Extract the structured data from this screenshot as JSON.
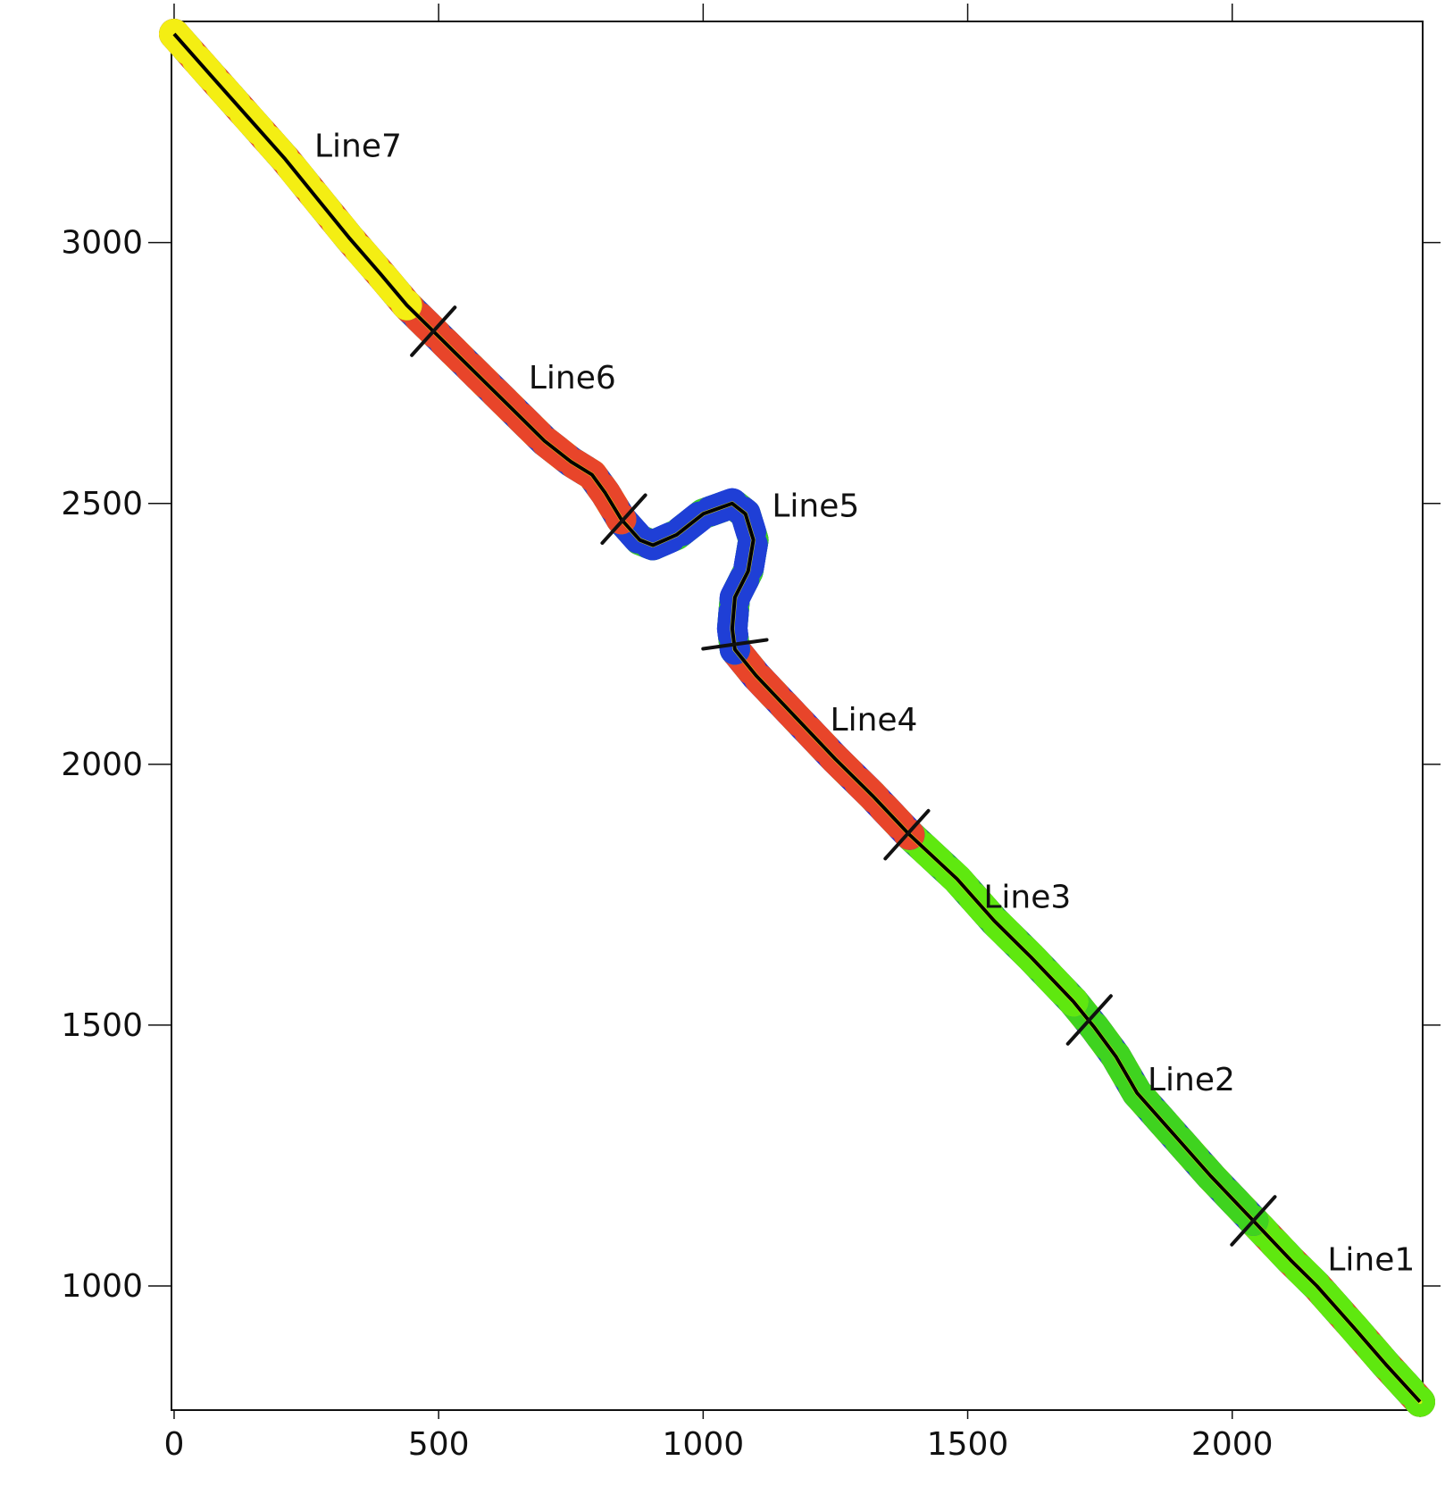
{
  "chart_data": {
    "type": "line",
    "title": "",
    "xlabel": "",
    "ylabel": "",
    "xlim": [
      -5,
      2360
    ],
    "ylim": [
      762,
      3424
    ],
    "x_ticks": [
      0,
      500,
      1000,
      1500,
      2000
    ],
    "y_ticks": [
      1000,
      1500,
      2000,
      2500,
      3000
    ],
    "x_tick_labels": [
      "0",
      "500",
      "1000",
      "1500",
      "2000"
    ],
    "y_tick_labels": [
      "1000",
      "1500",
      "2000",
      "2500",
      "3000"
    ],
    "grid": false,
    "track_points": [
      {
        "x": 2355,
        "y": 778
      },
      {
        "x": 2290,
        "y": 850
      },
      {
        "x": 2230,
        "y": 920
      },
      {
        "x": 2160,
        "y": 1000
      },
      {
        "x": 2110,
        "y": 1050
      },
      {
        "x": 2040,
        "y": 1125
      },
      {
        "x": 1960,
        "y": 1210
      },
      {
        "x": 1890,
        "y": 1290
      },
      {
        "x": 1820,
        "y": 1370
      },
      {
        "x": 1780,
        "y": 1440
      },
      {
        "x": 1740,
        "y": 1495
      },
      {
        "x": 1700,
        "y": 1545
      },
      {
        "x": 1620,
        "y": 1630
      },
      {
        "x": 1550,
        "y": 1700
      },
      {
        "x": 1480,
        "y": 1780
      },
      {
        "x": 1390,
        "y": 1865
      },
      {
        "x": 1320,
        "y": 1940
      },
      {
        "x": 1250,
        "y": 2010
      },
      {
        "x": 1170,
        "y": 2095
      },
      {
        "x": 1100,
        "y": 2170
      },
      {
        "x": 1060,
        "y": 2220
      },
      {
        "x": 1055,
        "y": 2260
      },
      {
        "x": 1060,
        "y": 2320
      },
      {
        "x": 1085,
        "y": 2370
      },
      {
        "x": 1095,
        "y": 2430
      },
      {
        "x": 1080,
        "y": 2480
      },
      {
        "x": 1055,
        "y": 2500
      },
      {
        "x": 1000,
        "y": 2480
      },
      {
        "x": 950,
        "y": 2440
      },
      {
        "x": 905,
        "y": 2420
      },
      {
        "x": 880,
        "y": 2430
      },
      {
        "x": 845,
        "y": 2470
      },
      {
        "x": 815,
        "y": 2520
      },
      {
        "x": 790,
        "y": 2555
      },
      {
        "x": 750,
        "y": 2580
      },
      {
        "x": 700,
        "y": 2620
      },
      {
        "x": 640,
        "y": 2680
      },
      {
        "x": 570,
        "y": 2750
      },
      {
        "x": 500,
        "y": 2820
      },
      {
        "x": 440,
        "y": 2880
      },
      {
        "x": 390,
        "y": 2940
      },
      {
        "x": 330,
        "y": 3010
      },
      {
        "x": 270,
        "y": 3085
      },
      {
        "x": 210,
        "y": 3160
      },
      {
        "x": 140,
        "y": 3240
      },
      {
        "x": 70,
        "y": 3320
      },
      {
        "x": 0,
        "y": 3400
      }
    ],
    "segments": [
      {
        "name": "Line1",
        "label_x": 2180,
        "label_y": 1030,
        "start_index": 0,
        "end_index": 5,
        "band_colors": [
          "#3fd31f",
          "#1f3fd6",
          "#e8452a",
          "#5fe80f"
        ]
      },
      {
        "name": "Line2",
        "label_x": 1840,
        "label_y": 1375,
        "start_index": 5,
        "end_index": 11,
        "band_colors": [
          "#e8452a",
          "#f4ee13",
          "#1f3fd6",
          "#3fd31f"
        ]
      },
      {
        "name": "Line3",
        "label_x": 1530,
        "label_y": 1725,
        "start_index": 11,
        "end_index": 15,
        "band_colors": [
          "#3fd31f",
          "#1f3fd6",
          "#2f9d5a",
          "#5fe80f"
        ]
      },
      {
        "name": "Line4",
        "label_x": 1240,
        "label_y": 2065,
        "start_index": 15,
        "end_index": 20,
        "band_colors": [
          "#1f3fd6",
          "#3fd31f",
          "#2b2bd9",
          "#e8452a"
        ]
      },
      {
        "name": "Line5",
        "label_x": 1130,
        "label_y": 2475,
        "start_index": 20,
        "end_index": 31,
        "band_colors": [
          "#1f3fd6",
          "#2030e0",
          "#3fd31f",
          "#1f3fd6"
        ]
      },
      {
        "name": "Line6",
        "label_x": 670,
        "label_y": 2720,
        "start_index": 31,
        "end_index": 39,
        "band_colors": [
          "#3fd31f",
          "#f4ee13",
          "#1f3fd6",
          "#e8452a"
        ]
      },
      {
        "name": "Line7",
        "label_x": 265,
        "label_y": 3165,
        "start_index": 39,
        "end_index": 46,
        "band_colors": [
          "#3fd31f",
          "#1f3fd6",
          "#e8452a",
          "#f4ee13"
        ]
      }
    ],
    "dividers": [
      {
        "x": 2040,
        "y": 1125,
        "angle": 48
      },
      {
        "x": 1730,
        "y": 1510,
        "angle": 48
      },
      {
        "x": 1385,
        "y": 1865,
        "angle": 48
      },
      {
        "x": 1060,
        "y": 2230,
        "angle": 8
      },
      {
        "x": 850,
        "y": 2470,
        "angle": 48
      },
      {
        "x": 490,
        "y": 2830,
        "angle": 48
      }
    ],
    "colors": {
      "frame": "#111111",
      "center_line": "#000000",
      "core_line": "#f4ee13"
    }
  }
}
